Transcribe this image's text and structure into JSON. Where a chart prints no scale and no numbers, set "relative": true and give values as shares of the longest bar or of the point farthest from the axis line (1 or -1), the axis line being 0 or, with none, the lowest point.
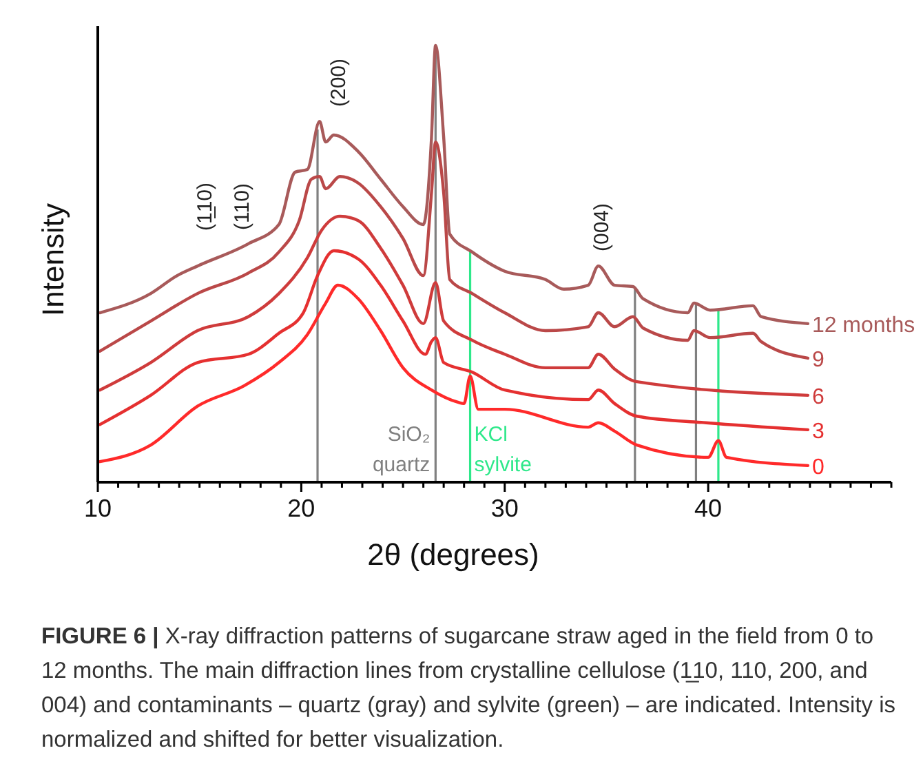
{
  "chart_data": {
    "type": "line",
    "relative": true,
    "xlabel": "2θ (degrees)",
    "ylabel": "Intensity",
    "xlim": [
      10,
      49
    ],
    "xticks": [
      10,
      {
        "value": 11,
        "label": null
      },
      {
        "value": 12,
        "label": null
      },
      {
        "value": 13,
        "label": null
      },
      {
        "value": 14,
        "label": null
      },
      {
        "value": 15,
        "label": null
      },
      {
        "value": 16,
        "label": null
      },
      {
        "value": 17,
        "label": null
      },
      {
        "value": 18,
        "label": null
      },
      {
        "value": 19,
        "label": null
      },
      20,
      {
        "value": 21,
        "label": null
      },
      {
        "value": 22,
        "label": null
      },
      {
        "value": 23,
        "label": null
      },
      {
        "value": 24,
        "label": null
      },
      {
        "value": 25,
        "label": null
      },
      {
        "value": 26,
        "label": null
      },
      {
        "value": 27,
        "label": null
      },
      {
        "value": 28,
        "label": null
      },
      {
        "value": 29,
        "label": null
      },
      30,
      {
        "value": 31,
        "label": null
      },
      {
        "value": 32,
        "label": null
      },
      {
        "value": 33,
        "label": null
      },
      {
        "value": 34,
        "label": null
      },
      {
        "value": 35,
        "label": null
      },
      {
        "value": 36,
        "label": null
      },
      {
        "value": 37,
        "label": null
      },
      {
        "value": 38,
        "label": null
      },
      {
        "value": 39,
        "label": null
      },
      40,
      {
        "value": 41,
        "label": null
      },
      {
        "value": 42,
        "label": null
      },
      {
        "value": 43,
        "label": null
      },
      {
        "value": 44,
        "label": null
      },
      {
        "value": 45,
        "label": null
      },
      {
        "value": 46,
        "label": null
      },
      {
        "value": 47,
        "label": null
      },
      {
        "value": 48,
        "label": null
      },
      {
        "value": 49,
        "label": null
      }
    ],
    "grid": false,
    "marker": "none",
    "line_style": "solid",
    "series": [
      {
        "name": "0",
        "color": "#ff2a2a",
        "x": [
          10.1,
          12.6,
          14.9,
          17.2,
          18.9,
          20.3,
          21.2,
          21.8,
          22.8,
          23.9,
          25.0,
          26.4,
          27.7,
          28.0,
          28.3,
          28.7,
          30.0,
          34.1,
          34.6,
          35.4,
          36.5,
          40.0,
          40.5,
          40.9,
          44.9
        ],
        "values": [
          0.047,
          0.085,
          0.174,
          0.221,
          0.274,
          0.338,
          0.41,
          0.451,
          0.42,
          0.347,
          0.262,
          0.211,
          0.183,
          0.18,
          0.243,
          0.167,
          0.167,
          0.126,
          0.136,
          0.117,
          0.085,
          0.057,
          0.095,
          0.057,
          0.038
        ]
      },
      {
        "name": "3",
        "color": "#e53030",
        "x": [
          10.1,
          12.6,
          14.9,
          17.4,
          18.9,
          20.1,
          20.8,
          21.6,
          22.8,
          23.9,
          25.0,
          26.1,
          26.4,
          26.6,
          27.0,
          28.4,
          30.0,
          34.1,
          34.6,
          35.4,
          36.5,
          39.9,
          44.9
        ],
        "values": [
          0.132,
          0.199,
          0.274,
          0.293,
          0.341,
          0.388,
          0.473,
          0.53,
          0.511,
          0.451,
          0.369,
          0.293,
          0.322,
          0.331,
          0.274,
          0.252,
          0.211,
          0.189,
          0.211,
          0.18,
          0.151,
          0.136,
          0.12
        ]
      },
      {
        "name": "6",
        "color": "#cf3b3b",
        "x": [
          10.1,
          12.6,
          14.9,
          17.4,
          18.9,
          20.3,
          21.0,
          21.9,
          22.8,
          23.9,
          25.0,
          26.0,
          26.6,
          27.0,
          28.4,
          30.0,
          32.0,
          34.1,
          34.6,
          35.4,
          36.5,
          44.9
        ],
        "values": [
          0.211,
          0.274,
          0.347,
          0.379,
          0.432,
          0.514,
          0.577,
          0.609,
          0.599,
          0.536,
          0.451,
          0.363,
          0.457,
          0.369,
          0.325,
          0.293,
          0.262,
          0.262,
          0.293,
          0.259,
          0.23,
          0.199
        ]
      },
      {
        "name": "9",
        "color": "#ba4848",
        "x": [
          10.1,
          12.6,
          14.9,
          17.4,
          18.9,
          19.9,
          20.5,
          20.9,
          21.2,
          21.9,
          22.8,
          23.9,
          25.0,
          26.0,
          26.4,
          26.6,
          27.0,
          27.3,
          28.4,
          30.0,
          32.0,
          34.1,
          34.6,
          35.4,
          36.3,
          36.8,
          39.0,
          39.3,
          40.1,
          42.2,
          42.6,
          44.9
        ],
        "values": [
          0.3,
          0.369,
          0.432,
          0.479,
          0.527,
          0.599,
          0.694,
          0.7,
          0.672,
          0.7,
          0.685,
          0.631,
          0.558,
          0.473,
          0.662,
          0.779,
          0.662,
          0.464,
          0.432,
          0.388,
          0.347,
          0.356,
          0.388,
          0.356,
          0.379,
          0.353,
          0.325,
          0.347,
          0.331,
          0.341,
          0.322,
          0.284
        ]
      },
      {
        "name": "12 months",
        "color": "#a85a5a",
        "x": [
          10.1,
          12.6,
          13.9,
          14.9,
          17.4,
          18.9,
          19.7,
          20.3,
          20.9,
          21.2,
          21.6,
          22.8,
          23.9,
          25.0,
          26.0,
          26.4,
          26.6,
          27.0,
          27.3,
          28.4,
          30.0,
          32.0,
          32.9,
          34.1,
          34.6,
          35.4,
          36.3,
          36.8,
          39.0,
          39.3,
          40.1,
          42.2,
          42.6,
          44.9
        ],
        "values": [
          0.388,
          0.432,
          0.473,
          0.495,
          0.546,
          0.59,
          0.71,
          0.716,
          0.826,
          0.779,
          0.795,
          0.757,
          0.694,
          0.631,
          0.59,
          0.789,
          1,
          0.789,
          0.568,
          0.527,
          0.483,
          0.464,
          0.442,
          0.451,
          0.495,
          0.451,
          0.448,
          0.42,
          0.388,
          0.41,
          0.394,
          0.404,
          0.379,
          0.363
        ]
      }
    ],
    "ref_lines": [
      {
        "axis": "x",
        "value": 20.8,
        "color": "#808080"
      },
      {
        "axis": "x",
        "value": 26.6,
        "color": "#808080",
        "label": "SiO₂ quartz"
      },
      {
        "axis": "x",
        "value": 28.3,
        "color": "#2ee88a",
        "label": "KCl sylvite"
      },
      {
        "axis": "x",
        "value": 36.4,
        "color": "#808080"
      },
      {
        "axis": "x",
        "value": 39.4,
        "color": "#808080"
      },
      {
        "axis": "x",
        "value": 40.5,
        "color": "#2ee88a"
      }
    ],
    "annotations": [
      "(1̲10)",
      "(110)",
      "(200)",
      "(004)",
      "FIGURE 6 |",
      "X-ray diffraction patterns of sugarcane straw aged in the field from 0 to 12 months. The main diffraction lines from crystalline cellulose (1̲10, 110, 200, and 004) and contaminants – quartz (gray) and sylvite (green) – are indicated. Intensity is normalized and shifted for better visualization."
    ]
  }
}
